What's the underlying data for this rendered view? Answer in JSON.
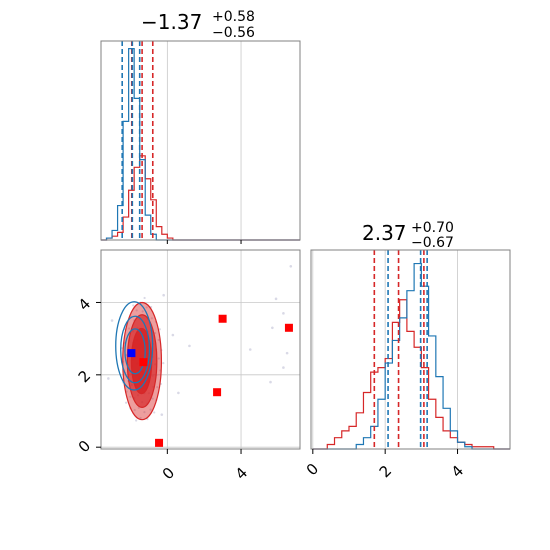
{
  "chart_data": {
    "type": "corner",
    "grid": true,
    "colors": {
      "red": "#d62728",
      "blue": "#1f77b4",
      "scatter_pts": "#d9d9e6",
      "grid": "#c8c8c8",
      "marker_blue": "#0000ff",
      "marker_red": "#ff0000"
    },
    "parameters": [
      {
        "title": {
          "median": "−1.37",
          "plus": "+0.58",
          "minus": "−0.56"
        },
        "range": [
          -3.6,
          7.2
        ],
        "ticks": [
          0,
          4
        ],
        "tick_labels": [
          "0",
          "4"
        ],
        "quantiles_red": [
          -1.93,
          -1.37,
          -0.79
        ],
        "quantiles_blue": [
          -2.45,
          -1.9,
          -1.5
        ]
      },
      {
        "title": {
          "median": "2.37",
          "plus": "+0.70",
          "minus": "−0.67"
        },
        "range": [
          -0.05,
          5.45
        ],
        "ticks": [
          0,
          2,
          4
        ],
        "tick_labels": [
          "0",
          "2",
          "4"
        ],
        "quantiles_red": [
          1.7,
          2.37,
          3.07
        ],
        "quantiles_blue": [
          2.08,
          2.98,
          3.16
        ]
      }
    ],
    "hist_red_p0": {
      "edges": [
        -3.6,
        -3.3,
        -3.0,
        -2.7,
        -2.4,
        -2.1,
        -1.8,
        -1.5,
        -1.2,
        -0.9,
        -0.6,
        -0.3,
        0.0,
        0.3,
        0.6,
        5.2,
        5.5,
        7.2
      ],
      "counts": [
        0,
        1,
        2,
        4,
        12,
        26,
        38,
        44,
        32,
        21,
        7,
        3,
        1,
        0,
        0,
        0,
        0
      ]
    },
    "hist_blue_p0": {
      "edges": [
        -3.6,
        -3.3,
        -3.0,
        -2.7,
        -2.4,
        -2.1,
        -1.8,
        -1.5,
        -1.2,
        -0.9,
        -0.6,
        -0.3,
        0.0,
        7.2
      ],
      "counts": [
        0,
        1,
        5,
        18,
        62,
        100,
        74,
        42,
        13,
        3,
        0,
        0,
        0
      ]
    },
    "hist_red_p1": {
      "edges": [
        0.0,
        0.4,
        0.6,
        0.8,
        1.0,
        1.2,
        1.4,
        1.6,
        1.8,
        2.0,
        2.2,
        2.4,
        2.6,
        2.8,
        3.0,
        3.2,
        3.4,
        3.6,
        3.8,
        4.0,
        4.2,
        4.4,
        4.6,
        5.0,
        5.45
      ],
      "counts": [
        0,
        2,
        5,
        8,
        10,
        16,
        25,
        34,
        36,
        40,
        56,
        66,
        52,
        45,
        36,
        22,
        14,
        8,
        5,
        3,
        2,
        1,
        1,
        0
      ]
    },
    "hist_blue_p1": {
      "edges": [
        0.0,
        1.2,
        1.4,
        1.6,
        1.8,
        2.0,
        2.2,
        2.4,
        2.6,
        2.8,
        3.0,
        3.2,
        3.4,
        3.6,
        3.8,
        4.0,
        4.2,
        4.4,
        4.6,
        5.45
      ],
      "counts": [
        0,
        2,
        5,
        10,
        22,
        38,
        48,
        58,
        70,
        82,
        72,
        50,
        32,
        18,
        8,
        3,
        1,
        0,
        0
      ]
    },
    "contour_levels": [
      {
        "cx": -1.37,
        "cy": 2.38,
        "rx": 1.05,
        "ry": 1.62
      },
      {
        "cx": -1.37,
        "cy": 2.38,
        "rx": 0.8,
        "ry": 1.28
      },
      {
        "cx": -1.4,
        "cy": 2.38,
        "rx": 0.55,
        "ry": 0.9
      }
    ],
    "blue_contours": [
      {
        "cx": -1.8,
        "cy": 2.8,
        "rx": 1.0,
        "ry": 1.22
      },
      {
        "cx": -1.75,
        "cy": 2.7,
        "rx": 0.78,
        "ry": 0.92
      },
      {
        "cx": -1.75,
        "cy": 2.65,
        "rx": 0.55,
        "ry": 0.62
      }
    ],
    "markers_red": [
      {
        "x": 3.0,
        "y": 3.55
      },
      {
        "x": 6.6,
        "y": 3.3
      },
      {
        "x": 2.7,
        "y": 1.52
      },
      {
        "x": -0.45,
        "y": 0.12
      },
      {
        "x": -1.3,
        "y": 2.35
      }
    ],
    "markers_blue": [
      {
        "x": -1.95,
        "y": 2.6
      }
    ],
    "scatter_points": [
      {
        "x": 5.9,
        "y": 4.1
      },
      {
        "x": 5.7,
        "y": 3.3
      },
      {
        "x": 6.3,
        "y": 3.7
      },
      {
        "x": 6.5,
        "y": 2.6
      },
      {
        "x": 6.3,
        "y": 2.2
      },
      {
        "x": 5.6,
        "y": 1.8
      },
      {
        "x": 4.5,
        "y": 2.7
      },
      {
        "x": 6.7,
        "y": 5.0
      },
      {
        "x": 1.2,
        "y": 2.8
      },
      {
        "x": 0.3,
        "y": 3.1
      },
      {
        "x": 0.6,
        "y": 1.5
      },
      {
        "x": -0.2,
        "y": 4.2
      },
      {
        "x": -3.0,
        "y": 3.5
      },
      {
        "x": -3.2,
        "y": 1.9
      },
      {
        "x": -0.3,
        "y": 0.9
      }
    ]
  }
}
